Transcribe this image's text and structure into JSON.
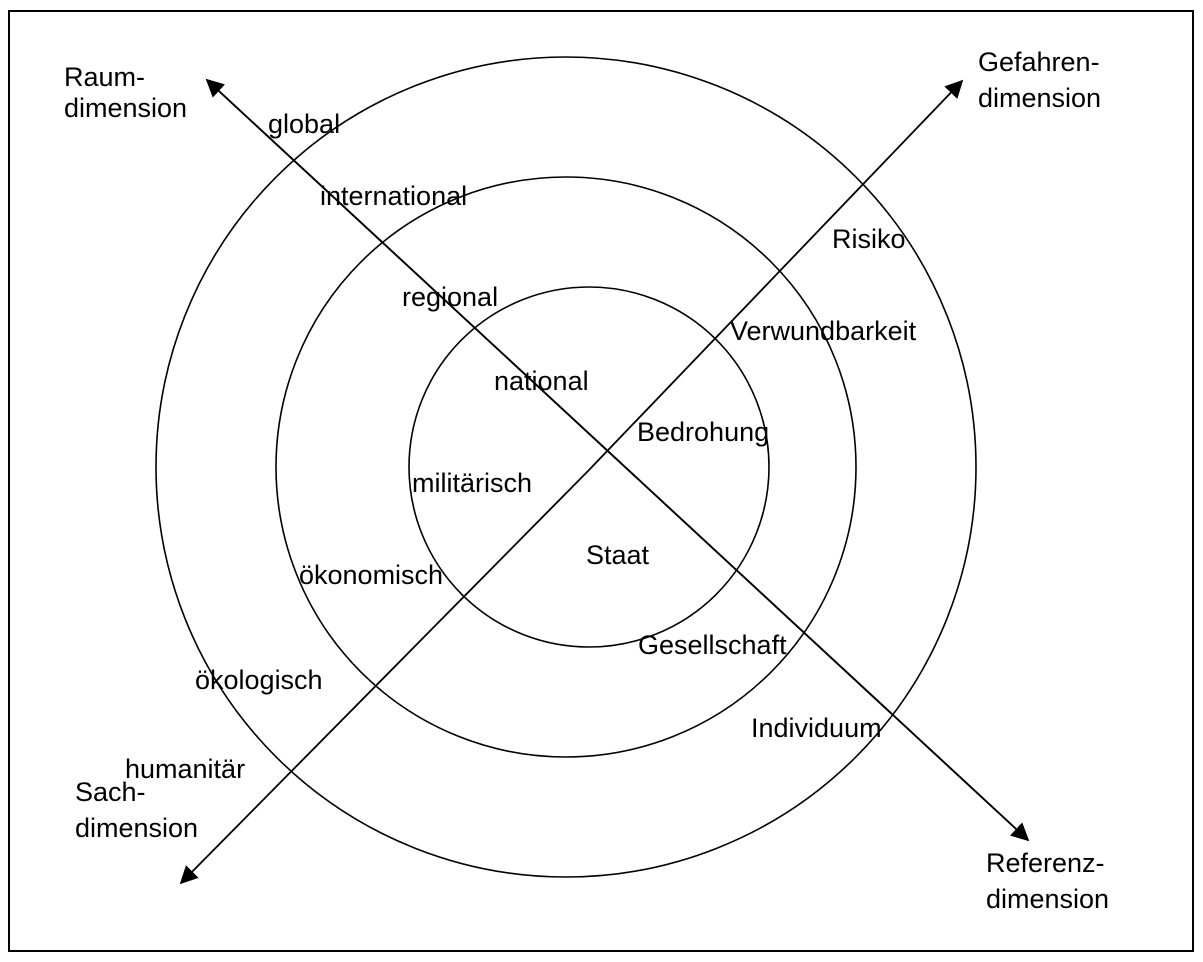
{
  "axes": {
    "raum": {
      "line1": "Raum-",
      "line2": "dimension"
    },
    "gefahren": {
      "line1": "Gefahren-",
      "line2": "dimension"
    },
    "sach": {
      "line1": "Sach-",
      "line2": "dimension"
    },
    "referenz": {
      "line1": "Referenz-",
      "line2": "dimension"
    }
  },
  "raum_levels": [
    "global",
    "international",
    "regional",
    "national"
  ],
  "gefahren_levels": [
    "Risiko",
    "Verwundbarkeit",
    "Bedrohung"
  ],
  "sach_levels": [
    "militärisch",
    "ökonomisch",
    "ökologisch",
    "humanitär"
  ],
  "referenz_levels": [
    "Staat",
    "Gesellschaft",
    "Individuum"
  ],
  "colors": {
    "line": "#000000",
    "background": "#ffffff"
  }
}
